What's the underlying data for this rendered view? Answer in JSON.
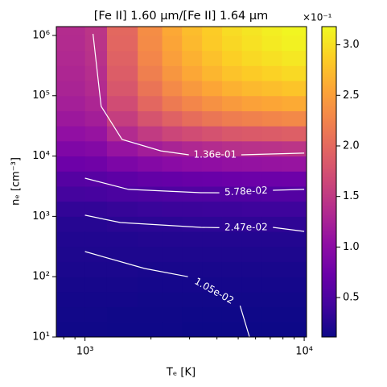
{
  "chart_data": {
    "type": "heatmap",
    "title": "[Fe II] 1.60 μm/[Fe II] 1.64 μm",
    "xlabel": "Tₑ [K]",
    "ylabel": "nₑ [cm⁻³]",
    "xscale": "log",
    "yscale": "log",
    "xlim": [
      740,
      10250
    ],
    "ylim": [
      10,
      1400000
    ],
    "xticks": [
      {
        "value": 1000,
        "label": "10³"
      },
      {
        "value": 10000,
        "label": "10⁴"
      }
    ],
    "xminorticks": [
      800,
      900,
      2000,
      3000,
      4000,
      5000,
      6000,
      7000,
      8000,
      9000
    ],
    "yticks": [
      {
        "value": 10,
        "label": "10¹"
      },
      {
        "value": 100,
        "label": "10²"
      },
      {
        "value": 1000,
        "label": "10³"
      },
      {
        "value": 10000,
        "label": "10⁴"
      },
      {
        "value": 100000,
        "label": "10⁵"
      },
      {
        "value": 1000000,
        "label": "10⁶"
      }
    ],
    "x_edges": [
      740,
      1000,
      1260,
      1740,
      2250,
      2770,
      3420,
      4220,
      5200,
      6410,
      7910,
      10250
    ],
    "y_edges": [
      10,
      17.8,
      31.6,
      56.2,
      100,
      178,
      316,
      562,
      1000,
      1780,
      3160,
      5620,
      10000,
      17800,
      31600,
      56200,
      100000,
      178000,
      316000,
      562000,
      1000000,
      1400000
    ],
    "z": [
      [
        0.13,
        0.13,
        0.12,
        0.12,
        0.12,
        0.11,
        0.11,
        0.11,
        0.11,
        0.11,
        0.11
      ],
      [
        0.14,
        0.14,
        0.13,
        0.13,
        0.13,
        0.12,
        0.12,
        0.12,
        0.12,
        0.12,
        0.12
      ],
      [
        0.15,
        0.15,
        0.15,
        0.14,
        0.14,
        0.14,
        0.14,
        0.14,
        0.14,
        0.14,
        0.14
      ],
      [
        0.17,
        0.17,
        0.17,
        0.16,
        0.16,
        0.16,
        0.16,
        0.16,
        0.16,
        0.16,
        0.16
      ],
      [
        0.19,
        0.19,
        0.19,
        0.18,
        0.18,
        0.18,
        0.18,
        0.18,
        0.18,
        0.18,
        0.18
      ],
      [
        0.21,
        0.21,
        0.21,
        0.21,
        0.21,
        0.21,
        0.21,
        0.21,
        0.21,
        0.21,
        0.21
      ],
      [
        0.23,
        0.23,
        0.23,
        0.24,
        0.24,
        0.24,
        0.24,
        0.24,
        0.24,
        0.24,
        0.24
      ],
      [
        0.26,
        0.26,
        0.28,
        0.29,
        0.29,
        0.3,
        0.3,
        0.31,
        0.31,
        0.31,
        0.31
      ],
      [
        0.33,
        0.33,
        0.35,
        0.37,
        0.38,
        0.38,
        0.39,
        0.39,
        0.4,
        0.4,
        0.4
      ],
      [
        0.45,
        0.46,
        0.49,
        0.51,
        0.52,
        0.53,
        0.53,
        0.54,
        0.54,
        0.55,
        0.55
      ],
      [
        0.57,
        0.58,
        0.63,
        0.67,
        0.69,
        0.71,
        0.72,
        0.73,
        0.74,
        0.74,
        0.75
      ],
      [
        0.75,
        0.77,
        0.87,
        0.94,
        0.99,
        1.02,
        1.04,
        1.07,
        1.08,
        1.09,
        1.1
      ],
      [
        0.9,
        0.93,
        1.09,
        1.2,
        1.27,
        1.32,
        1.36,
        1.4,
        1.42,
        1.43,
        1.45
      ],
      [
        1.05,
        1.09,
        1.35,
        1.52,
        1.63,
        1.7,
        1.76,
        1.82,
        1.85,
        1.87,
        1.9
      ],
      [
        1.15,
        1.21,
        1.55,
        1.78,
        1.93,
        2.04,
        2.12,
        2.19,
        2.23,
        2.27,
        2.3
      ],
      [
        1.22,
        1.29,
        1.7,
        1.98,
        2.16,
        2.28,
        2.38,
        2.46,
        2.52,
        2.56,
        2.6
      ],
      [
        1.27,
        1.35,
        1.81,
        2.11,
        2.31,
        2.45,
        2.56,
        2.65,
        2.71,
        2.75,
        2.8
      ],
      [
        1.3,
        1.38,
        1.88,
        2.21,
        2.42,
        2.57,
        2.69,
        2.79,
        2.85,
        2.9,
        2.95
      ],
      [
        1.33,
        1.42,
        1.93,
        2.28,
        2.5,
        2.65,
        2.77,
        2.88,
        2.95,
        3.0,
        3.05
      ],
      [
        1.35,
        1.44,
        1.97,
        2.32,
        2.55,
        2.71,
        2.84,
        2.94,
        3.01,
        3.07,
        3.12
      ],
      [
        1.36,
        1.45,
        1.99,
        2.34,
        2.58,
        2.74,
        2.86,
        2.97,
        3.04,
        3.1,
        3.15
      ]
    ],
    "colormap": "plasma",
    "clim": [
      0.11,
      3.18
    ],
    "cbar_offset": "×10⁻¹",
    "cbarticks": [
      0.5,
      {
        "value": 1,
        "label": "1.0"
      },
      1.5,
      {
        "value": 2,
        "label": "2.0"
      },
      2.5,
      {
        "value": 3,
        "label": "3.0"
      }
    ],
    "contour_color": "#ffffff",
    "contours": [
      {
        "level": 0.136,
        "label": "1.36e-01",
        "x": [
          1088,
          1185,
          1476,
          2217,
          2977,
          null,
          5165,
          10000
        ],
        "y": [
          1060000,
          67000,
          18800,
          12200,
          10500,
          null,
          10500,
          11200
        ]
      },
      {
        "level": 0.0578,
        "label": "5.78e-02",
        "x": [
          1000,
          1580,
          3380,
          4100,
          null,
          7200,
          10000
        ],
        "y": [
          4300,
          2800,
          2470,
          2460,
          null,
          2710,
          2800
        ]
      },
      {
        "level": 0.0247,
        "label": "2.47e-02",
        "x": [
          1000,
          1450,
          3380,
          4100,
          null,
          7200,
          10000
        ],
        "y": [
          1045,
          790,
          658,
          650,
          null,
          658,
          564
        ]
      },
      {
        "level": 0.0105,
        "label": "1.05e-02",
        "x": [
          1000,
          1870,
          2950,
          null,
          5100,
          5630
        ],
        "y": [
          261,
          137,
          100,
          null,
          33,
          10
        ]
      }
    ]
  }
}
